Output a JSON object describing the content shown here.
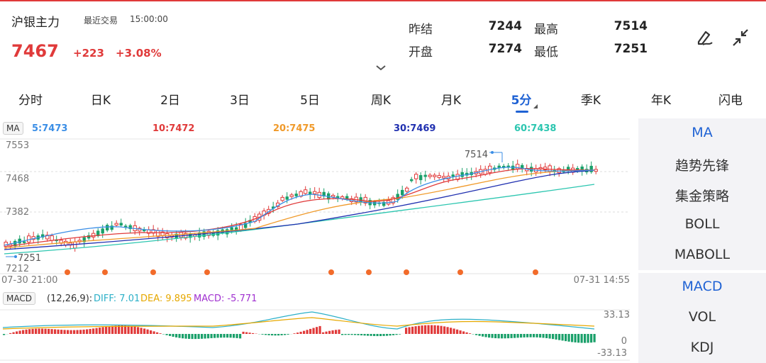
{
  "header": {
    "title": "沪银主力",
    "subtitle": "最近交易",
    "time": "15:00:00",
    "price": "7467",
    "change": "+223",
    "change_pct": "+3.08%",
    "stats": {
      "prev_settle_label": "昨结",
      "prev_settle": "7244",
      "high_label": "最高",
      "high": "7514",
      "open_label": "开盘",
      "open": "7274",
      "low_label": "最低",
      "low": "7251"
    },
    "icons": [
      "edit-pen-icon",
      "shrink-arrows-icon",
      "chevron-down-icon"
    ]
  },
  "tabs": [
    "分时",
    "日K",
    "2日",
    "3日",
    "5日",
    "周K",
    "月K",
    "5分",
    "季K",
    "年K",
    "闪电"
  ],
  "active_tab": "5分",
  "ma_legend": {
    "badge": "MA",
    "items": [
      {
        "label": "5:7473",
        "color": "#3a8ee6"
      },
      {
        "label": "10:7472",
        "color": "#e03a3a"
      },
      {
        "label": "20:7475",
        "color": "#f09a2a"
      },
      {
        "label": "30:7469",
        "color": "#2030b0"
      },
      {
        "label": "60:7438",
        "color": "#2cc6b0"
      }
    ]
  },
  "price_axis": {
    "ticks": [
      "7553",
      "7468",
      "7382",
      "7212"
    ],
    "high_marker": "7514",
    "low_marker": "7251",
    "time_start": "07-30 21:00",
    "time_end": "07-31 14:55"
  },
  "macd": {
    "badge": "MACD",
    "params": "(12,26,9):",
    "diff": "DIFF: 7.01",
    "dea": "DEA: 9.895",
    "macd": "MACD: -5.771",
    "diff_color": "#2cb0c8",
    "dea_color": "#e6a800",
    "macd_color": "#a030d0",
    "axis_top": "33.13",
    "axis_zero": "0",
    "axis_bottom": "-33.13"
  },
  "side_panel": {
    "top": [
      "MA",
      "趋势先锋",
      "集金策略",
      "BOLL",
      "MABOLL"
    ],
    "bottom": [
      "MACD",
      "VOL",
      "KDJ"
    ],
    "active": [
      "MA",
      "MACD"
    ]
  },
  "colors": {
    "up": "#e03a3a",
    "down": "#1aa06a",
    "accent": "#1f62d4",
    "marker": "#f26b2a"
  }
}
